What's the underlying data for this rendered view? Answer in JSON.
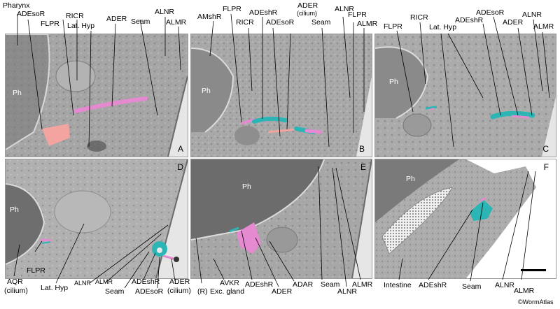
{
  "figure": {
    "panels": [
      {
        "id": "A",
        "label": "A"
      },
      {
        "id": "B",
        "label": "B"
      },
      {
        "id": "C",
        "label": "C"
      },
      {
        "id": "D",
        "label": "D"
      },
      {
        "id": "E",
        "label": "E"
      },
      {
        "id": "F",
        "label": "F"
      }
    ],
    "copyright": "©WormAtlas",
    "colors": {
      "pink": "#e58ad0",
      "salmon": "#f4a4a0",
      "teal": "#2bb5b5",
      "em": "#a8a8a8"
    },
    "icons": [
      "scale-bar-icon"
    ]
  },
  "labels": {
    "a_pharynx": "Pharynx",
    "a_adesor": "ADEsoR",
    "a_flpr": "FLPR",
    "a_ricr": "RICR",
    "a_lathyp": "Lat. Hyp",
    "a_ader": "ADER",
    "a_seam": "Seam",
    "a_alnr": "ALNR",
    "a_almr": "ALMR",
    "a_ph": "Ph",
    "b_amshr": "AMshR",
    "b_flpr": "FLPR",
    "b_ricr": "RICR",
    "b_adeshr": "ADEshR",
    "b_ader": "ADER",
    "b_cilium": "(cilium)",
    "b_adesor": "ADEsoR",
    "b_seam": "Seam",
    "b_alnr": "ALNR",
    "b_flpr2": "FLPR",
    "b_almr": "ALMR",
    "b_ph": "Ph",
    "c_flpr": "FLPR",
    "c_ricr": "RICR",
    "c_lathyp": "Lat. Hyp",
    "c_adeshr": "ADEshR",
    "c_adesor": "ADEsoR",
    "c_ader": "ADER",
    "c_alnr": "ALNR",
    "c_almr": "ALMR",
    "c_ph": "Ph",
    "d_ph": "Ph",
    "d_aqr": "AQR",
    "d_aqrcil": "(cilium)",
    "d_flpr": "FLPR",
    "d_lathyp": "Lat. Hyp",
    "d_alnr": "ALNR",
    "d_almr": "ALMR",
    "d_seam": "Seam",
    "d_adeshr": "ADEshR",
    "d_adesor": "ADEsoR",
    "d_ader": "ADER",
    "d_adercil": "(cilium)",
    "e_ph": "Ph",
    "e_r": "(R)",
    "e_avkr": "AVKR",
    "e_excgland": "Exc. gland",
    "e_adeshr": "ADEshR",
    "e_ader": "ADER",
    "e_adar": "ADAR",
    "e_seam": "Seam",
    "e_alnr": "ALNR",
    "e_almr": "ALMR",
    "f_ph": "Ph",
    "f_intestine": "Intestine",
    "f_adeshr": "ADEshR",
    "f_seam": "Seam",
    "f_alnr": "ALNR",
    "f_almr": "ALMR"
  }
}
